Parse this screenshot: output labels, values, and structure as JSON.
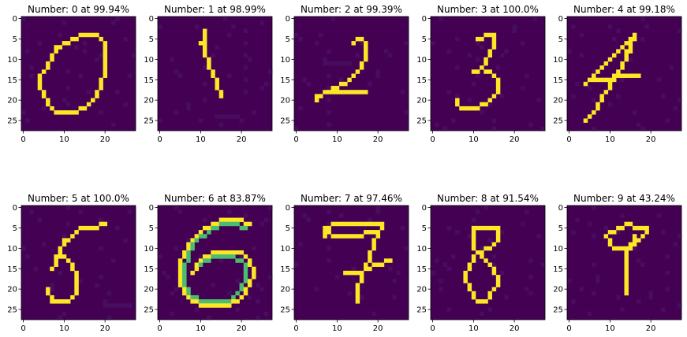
{
  "colors": {
    "background": "#440154",
    "foreground": "#fde725",
    "mid": "#35b779",
    "noise": "#470d60",
    "axis": "#000000"
  },
  "chart_data": [
    {
      "type": "heatmap",
      "title": "Number: 0 at 99.94%",
      "xticks": [
        0,
        10,
        20
      ],
      "yticks": [
        0,
        5,
        10,
        15,
        20,
        25
      ],
      "xlim": [
        -0.5,
        27.5
      ],
      "ylim": [
        27.5,
        -0.5
      ],
      "strokes": [
        {
          "pts": [
            [
              4,
              14
            ],
            [
              4,
              17
            ],
            [
              5,
              19
            ],
            [
              6,
              21
            ],
            [
              7,
              22
            ],
            [
              9,
              23
            ],
            [
              12,
              23
            ],
            [
              14,
              22
            ],
            [
              16,
              21
            ],
            [
              18,
              19
            ],
            [
              19,
              16
            ],
            [
              20,
              13
            ],
            [
              20,
              10
            ],
            [
              20,
              7
            ],
            [
              19,
              5
            ],
            [
              18,
              4
            ],
            [
              15,
              4
            ],
            [
              12,
              5
            ],
            [
              10,
              6
            ],
            [
              8,
              7
            ],
            [
              7,
              9
            ],
            [
              6,
              11
            ],
            [
              5,
              13
            ],
            [
              4,
              14
            ]
          ],
          "v": 1
        }
      ]
    },
    {
      "type": "heatmap",
      "title": "Number: 1 at 98.99%",
      "xticks": [
        0,
        10,
        20
      ],
      "yticks": [
        0,
        5,
        10,
        15,
        20,
        25
      ],
      "xlim": [
        -0.5,
        27.5
      ],
      "ylim": [
        27.5,
        -0.5
      ],
      "strokes": [
        {
          "pts": [
            [
              11,
              3
            ],
            [
              11,
              5
            ],
            [
              11,
              8
            ],
            [
              12,
              11
            ],
            [
              13,
              14
            ],
            [
              14,
              16
            ],
            [
              15,
              19
            ]
          ],
          "v": 1
        },
        {
          "pts": [
            [
              10,
              6
            ],
            [
              11,
              4
            ]
          ],
          "v": 1
        }
      ]
    },
    {
      "type": "heatmap",
      "title": "Number: 2 at 99.39%",
      "xticks": [
        0,
        10,
        20
      ],
      "yticks": [
        0,
        5,
        10,
        15,
        20,
        25
      ],
      "xlim": [
        -0.5,
        27.5
      ],
      "ylim": [
        27.5,
        -0.5
      ],
      "strokes": [
        {
          "pts": [
            [
              14,
              6
            ],
            [
              15,
              5
            ],
            [
              16,
              5
            ],
            [
              17,
              6
            ],
            [
              17,
              9
            ],
            [
              16,
              11
            ],
            [
              15,
              13
            ],
            [
              13,
              15
            ],
            [
              11,
              16
            ],
            [
              9,
              17
            ],
            [
              7,
              18
            ],
            [
              5,
              19
            ],
            [
              5,
              20
            ]
          ],
          "v": 1
        },
        {
          "pts": [
            [
              9,
              18
            ],
            [
              13,
              18
            ],
            [
              17,
              18
            ]
          ],
          "v": 1
        }
      ]
    },
    {
      "type": "heatmap",
      "title": "Number: 3 at 100.0%",
      "xticks": [
        0,
        10,
        20
      ],
      "yticks": [
        0,
        5,
        10,
        15,
        20,
        25
      ],
      "xlim": [
        -0.5,
        27.5
      ],
      "ylim": [
        27.5,
        -0.5
      ],
      "strokes": [
        {
          "pts": [
            [
              11,
              5
            ],
            [
              13,
              4
            ],
            [
              15,
              4
            ],
            [
              15,
              6
            ],
            [
              14,
              8
            ],
            [
              13,
              10
            ],
            [
              12,
              12
            ],
            [
              10,
              13
            ]
          ],
          "v": 1
        },
        {
          "pts": [
            [
              12,
              12
            ],
            [
              14,
              13
            ],
            [
              16,
              15
            ],
            [
              16,
              18
            ],
            [
              14,
              20
            ],
            [
              12,
              21
            ],
            [
              10,
              22
            ],
            [
              8,
              22
            ],
            [
              6,
              21
            ],
            [
              6,
              20
            ]
          ],
          "v": 1
        }
      ]
    },
    {
      "type": "heatmap",
      "title": "Number: 4 at 99.18%",
      "xticks": [
        0,
        10,
        20
      ],
      "yticks": [
        0,
        5,
        10,
        15,
        20,
        25
      ],
      "xlim": [
        -0.5,
        27.5
      ],
      "ylim": [
        27.5,
        -0.5
      ],
      "strokes": [
        {
          "pts": [
            [
              15,
              5
            ],
            [
              13,
              7
            ],
            [
              11,
              9
            ],
            [
              9,
              11
            ],
            [
              7,
              13
            ],
            [
              5,
              15
            ],
            [
              4,
              16
            ]
          ],
          "v": 1
        },
        {
          "pts": [
            [
              15,
              6
            ],
            [
              14,
              9
            ],
            [
              13,
              11
            ],
            [
              12,
              13
            ],
            [
              10,
              16
            ],
            [
              9,
              18
            ],
            [
              7,
              21
            ],
            [
              6,
              23
            ],
            [
              5,
              24
            ],
            [
              4,
              25
            ]
          ],
          "v": 1
        },
        {
          "pts": [
            [
              5,
              15
            ],
            [
              8,
              15
            ],
            [
              12,
              14
            ],
            [
              17,
              14
            ]
          ],
          "v": 1
        },
        {
          "pts": [
            [
              16,
              4
            ],
            [
              15,
              7
            ],
            [
              14,
              10
            ]
          ],
          "v": 1
        }
      ]
    },
    {
      "type": "heatmap",
      "title": "Number: 5 at 100.0%",
      "xticks": [
        0,
        10,
        20
      ],
      "yticks": [
        0,
        5,
        10,
        15,
        20,
        25
      ],
      "xlim": [
        -0.5,
        27.5
      ],
      "ylim": [
        27.5,
        -0.5
      ],
      "strokes": [
        {
          "pts": [
            [
              20,
              4
            ],
            [
              17,
              5
            ],
            [
              14,
              5
            ],
            [
              12,
              7
            ],
            [
              10,
              8
            ],
            [
              9,
              10
            ],
            [
              8,
              12
            ],
            [
              8,
              14
            ],
            [
              7,
              15
            ]
          ],
          "v": 1
        },
        {
          "pts": [
            [
              8,
              12
            ],
            [
              10,
              12
            ],
            [
              12,
              14
            ],
            [
              13,
              17
            ],
            [
              13,
              20
            ],
            [
              12,
              22
            ],
            [
              10,
              23
            ],
            [
              7,
              23
            ],
            [
              6,
              21
            ],
            [
              6,
              20
            ]
          ],
          "v": 1
        }
      ]
    },
    {
      "type": "heatmap",
      "title": "Number: 6 at 83.87%",
      "xticks": [
        0,
        10,
        20
      ],
      "yticks": [
        0,
        5,
        10,
        15,
        20,
        25
      ],
      "xlim": [
        -0.5,
        27.5
      ],
      "ylim": [
        27.5,
        -0.5
      ],
      "strokes": [
        {
          "pts": [
            [
              22,
              4
            ],
            [
              19,
              3
            ],
            [
              16,
              3
            ],
            [
              13,
              4
            ],
            [
              10,
              6
            ],
            [
              8,
              8
            ],
            [
              6,
              11
            ],
            [
              5,
              14
            ],
            [
              5,
              18
            ],
            [
              6,
              21
            ],
            [
              8,
              23
            ],
            [
              11,
              24
            ],
            [
              14,
              24
            ],
            [
              17,
              24
            ],
            [
              20,
              22
            ],
            [
              22,
              19
            ],
            [
              23,
              16
            ],
            [
              22,
              13
            ],
            [
              20,
              11
            ],
            [
              17,
              11
            ],
            [
              14,
              11
            ],
            [
              11,
              12
            ],
            [
              9,
              14
            ],
            [
              8,
              16
            ]
          ],
          "v": 1
        },
        {
          "pts": [
            [
              21,
              5
            ],
            [
              18,
              4
            ],
            [
              15,
              4
            ],
            [
              12,
              6
            ],
            [
              9,
              8
            ],
            [
              7,
              11
            ],
            [
              6,
              15
            ],
            [
              6,
              19
            ],
            [
              8,
              22
            ],
            [
              11,
              23
            ],
            [
              14,
              23
            ],
            [
              17,
              23
            ],
            [
              19,
              21
            ],
            [
              21,
              18
            ],
            [
              21,
              15
            ],
            [
              20,
              13
            ],
            [
              17,
              12
            ],
            [
              13,
              12
            ],
            [
              10,
              14
            ]
          ],
          "v": 0.55
        }
      ]
    },
    {
      "type": "heatmap",
      "title": "Number: 7 at 97.46%",
      "xticks": [
        0,
        10,
        20
      ],
      "yticks": [
        0,
        5,
        10,
        15,
        20,
        25
      ],
      "xlim": [
        -0.5,
        27.5
      ],
      "ylim": [
        27.5,
        -0.5
      ],
      "strokes": [
        {
          "pts": [
            [
              7,
              7
            ],
            [
              7,
              5
            ],
            [
              9,
              4
            ],
            [
              12,
              4
            ],
            [
              16,
              4
            ],
            [
              19,
              4
            ],
            [
              21,
              4
            ]
          ],
          "v": 1
        },
        {
          "pts": [
            [
              7,
              6
            ],
            [
              10,
              7
            ],
            [
              14,
              7
            ],
            [
              18,
              6
            ],
            [
              20,
              6
            ]
          ],
          "v": 1
        },
        {
          "pts": [
            [
              21,
              4
            ],
            [
              20,
              6
            ],
            [
              19,
              9
            ],
            [
              18,
              12
            ],
            [
              17,
              14
            ],
            [
              16,
              17
            ],
            [
              15,
              20
            ],
            [
              15,
              23
            ]
          ],
          "v": 1
        },
        {
          "pts": [
            [
              12,
              16
            ],
            [
              16,
              16
            ],
            [
              19,
              14
            ],
            [
              23,
              13
            ]
          ],
          "v": 1
        }
      ]
    },
    {
      "type": "heatmap",
      "title": "Number: 8 at 91.54%",
      "xticks": [
        0,
        10,
        20
      ],
      "yticks": [
        0,
        5,
        10,
        15,
        20,
        25
      ],
      "xlim": [
        -0.5,
        27.5
      ],
      "ylim": [
        27.5,
        -0.5
      ],
      "strokes": [
        {
          "pts": [
            [
              10,
              7
            ],
            [
              10,
              5
            ],
            [
              12,
              5
            ],
            [
              16,
              5
            ],
            [
              16,
              7
            ],
            [
              15,
              9
            ],
            [
              13,
              10
            ],
            [
              11,
              11
            ],
            [
              10,
              12
            ],
            [
              9,
              14
            ],
            [
              8,
              16
            ],
            [
              8,
              18
            ],
            [
              9,
              20
            ],
            [
              10,
              22
            ],
            [
              11,
              23
            ],
            [
              13,
              23
            ],
            [
              14,
              21
            ],
            [
              15,
              20
            ],
            [
              16,
              18
            ],
            [
              15,
              16
            ],
            [
              14,
              14
            ],
            [
              12,
              12
            ],
            [
              10,
              10
            ],
            [
              10,
              8
            ]
          ],
          "v": 1
        }
      ]
    },
    {
      "type": "heatmap",
      "title": "Number: 9 at 43.24%",
      "xticks": [
        0,
        10,
        20
      ],
      "yticks": [
        0,
        5,
        10,
        15,
        20,
        25
      ],
      "xlim": [
        -0.5,
        27.5
      ],
      "ylim": [
        27.5,
        -0.5
      ],
      "strokes": [
        {
          "pts": [
            [
              19,
              5
            ],
            [
              17,
              5
            ],
            [
              14,
              4
            ],
            [
              12,
              5
            ],
            [
              10,
              6
            ],
            [
              9,
              7
            ],
            [
              10,
              9
            ],
            [
              12,
              10
            ],
            [
              14,
              10
            ],
            [
              16,
              9
            ],
            [
              18,
              7
            ],
            [
              19,
              6
            ]
          ],
          "v": 1
        },
        {
          "pts": [
            [
              16,
              7
            ],
            [
              15,
              9
            ],
            [
              14,
              11
            ],
            [
              14,
              15
            ],
            [
              14,
              19
            ],
            [
              14,
              21
            ]
          ],
          "v": 1
        }
      ]
    }
  ]
}
